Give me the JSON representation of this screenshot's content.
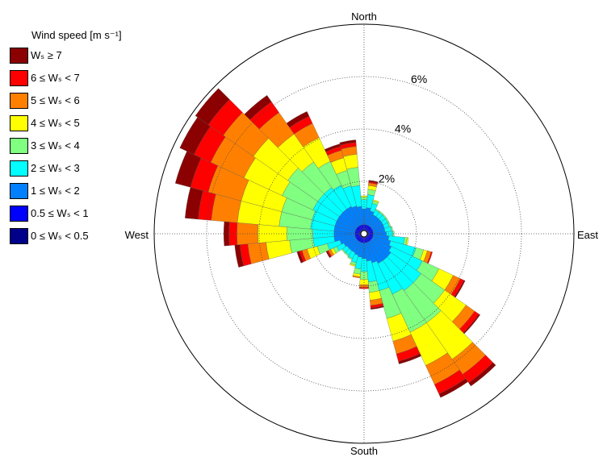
{
  "chart_data": {
    "type": "wind-rose",
    "legend": {
      "title": "Wind speed [m s⁻¹]",
      "placement": "top-left",
      "items": [
        {
          "label": "Wₛ ≥ 7",
          "color": "#8b0000"
        },
        {
          "label": "6 ≤ Wₛ < 7",
          "color": "#ff0000"
        },
        {
          "label": "5 ≤ Wₛ < 6",
          "color": "#ff8000"
        },
        {
          "label": "4 ≤ Wₛ < 5",
          "color": "#ffff00"
        },
        {
          "label": "3 ≤ Wₛ < 4",
          "color": "#80ff80"
        },
        {
          "label": "2 ≤ Wₛ < 3",
          "color": "#00ffff"
        },
        {
          "label": "1 ≤ Wₛ < 2",
          "color": "#0080ff"
        },
        {
          "label": "0.5 ≤ Wₛ < 1",
          "color": "#0000ff"
        },
        {
          "label": "0 ≤ Wₛ < 0.5",
          "color": "#00008b"
        }
      ]
    },
    "directions": {
      "north": "North",
      "east": "East",
      "south": "South",
      "west": "West"
    },
    "radial_ticks": [
      {
        "value": 2,
        "label": "2%"
      },
      {
        "value": 4,
        "label": "4%"
      },
      {
        "value": 6,
        "label": "6%"
      }
    ],
    "r_max": 8,
    "grid": true,
    "sector_width_deg": 10,
    "series_order": [
      "0-0.5",
      "0.5-1",
      "1-2",
      "2-3",
      "3-4",
      "4-5",
      "5-6",
      "6-7",
      ">=7"
    ],
    "sectors": [
      {
        "dir": 0,
        "values": [
          0.15,
          0.2,
          0.6,
          0.35,
          0.1,
          0.05,
          0.0,
          0.0,
          0.0
        ]
      },
      {
        "dir": 10,
        "values": [
          0.15,
          0.2,
          0.65,
          0.5,
          0.2,
          0.15,
          0.1,
          0.05,
          0.05
        ]
      },
      {
        "dir": 20,
        "values": [
          0.15,
          0.2,
          0.55,
          0.3,
          0.1,
          0.05,
          0.0,
          0.0,
          0.0
        ]
      },
      {
        "dir": 30,
        "values": [
          0.15,
          0.2,
          0.45,
          0.2,
          0.05,
          0.0,
          0.0,
          0.0,
          0.0
        ]
      },
      {
        "dir": 40,
        "values": [
          0.15,
          0.2,
          0.45,
          0.2,
          0.05,
          0.0,
          0.0,
          0.0,
          0.0
        ]
      },
      {
        "dir": 50,
        "values": [
          0.15,
          0.2,
          0.45,
          0.2,
          0.05,
          0.0,
          0.0,
          0.0,
          0.0
        ]
      },
      {
        "dir": 60,
        "values": [
          0.15,
          0.2,
          0.45,
          0.2,
          0.05,
          0.0,
          0.0,
          0.0,
          0.0
        ]
      },
      {
        "dir": 70,
        "values": [
          0.15,
          0.2,
          0.45,
          0.2,
          0.05,
          0.0,
          0.0,
          0.0,
          0.0
        ]
      },
      {
        "dir": 80,
        "values": [
          0.15,
          0.2,
          0.45,
          0.25,
          0.05,
          0.0,
          0.0,
          0.0,
          0.0
        ]
      },
      {
        "dir": 90,
        "values": [
          0.15,
          0.2,
          0.5,
          0.25,
          0.05,
          0.0,
          0.0,
          0.0,
          0.0
        ]
      },
      {
        "dir": 100,
        "values": [
          0.15,
          0.2,
          0.6,
          0.6,
          0.1,
          0.05,
          0.0,
          0.0,
          0.0
        ]
      },
      {
        "dir": 110,
        "values": [
          0.15,
          0.2,
          0.7,
          1.0,
          0.3,
          0.15,
          0.15,
          0.05,
          0.0
        ]
      },
      {
        "dir": 120,
        "values": [
          0.15,
          0.2,
          0.8,
          1.3,
          0.7,
          0.6,
          0.3,
          0.15,
          0.05
        ]
      },
      {
        "dir": 130,
        "values": [
          0.15,
          0.2,
          0.9,
          1.4,
          1.1,
          1.0,
          0.4,
          0.2,
          0.05
        ]
      },
      {
        "dir": 140,
        "values": [
          0.15,
          0.2,
          0.9,
          1.4,
          1.5,
          1.7,
          0.7,
          0.4,
          0.15
        ]
      },
      {
        "dir": 150,
        "values": [
          0.15,
          0.2,
          0.9,
          1.3,
          1.6,
          1.4,
          0.8,
          0.4,
          0.15
        ]
      },
      {
        "dir": 160,
        "values": [
          0.15,
          0.2,
          0.8,
          1.1,
          1.1,
          0.9,
          0.5,
          0.3,
          0.1
        ]
      },
      {
        "dir": 170,
        "values": [
          0.15,
          0.2,
          0.7,
          0.8,
          0.4,
          0.3,
          0.2,
          0.1,
          0.05
        ]
      },
      {
        "dir": 180,
        "values": [
          0.15,
          0.2,
          0.6,
          0.5,
          0.3,
          0.2,
          0.1,
          0.05,
          0.0
        ]
      },
      {
        "dir": 190,
        "values": [
          0.15,
          0.2,
          0.55,
          0.45,
          0.2,
          0.1,
          0.05,
          0.0,
          0.0
        ]
      },
      {
        "dir": 200,
        "values": [
          0.15,
          0.2,
          0.5,
          0.3,
          0.1,
          0.05,
          0.0,
          0.0,
          0.0
        ]
      },
      {
        "dir": 210,
        "values": [
          0.15,
          0.2,
          0.45,
          0.25,
          0.05,
          0.0,
          0.0,
          0.0,
          0.0
        ]
      },
      {
        "dir": 220,
        "values": [
          0.15,
          0.2,
          0.45,
          0.2,
          0.05,
          0.0,
          0.0,
          0.0,
          0.0
        ]
      },
      {
        "dir": 230,
        "values": [
          0.15,
          0.2,
          0.45,
          0.2,
          0.05,
          0.0,
          0.0,
          0.0,
          0.0
        ]
      },
      {
        "dir": 240,
        "values": [
          0.15,
          0.2,
          0.5,
          0.3,
          0.15,
          0.1,
          0.1,
          0.05,
          0.05
        ]
      },
      {
        "dir": 250,
        "values": [
          0.15,
          0.2,
          0.6,
          0.5,
          0.4,
          0.4,
          0.2,
          0.1,
          0.1
        ]
      },
      {
        "dir": 260,
        "values": [
          0.15,
          0.2,
          0.8,
          0.8,
          0.9,
          0.9,
          0.7,
          0.3,
          0.2
        ]
      },
      {
        "dir": 270,
        "values": [
          0.15,
          0.2,
          0.8,
          0.8,
          1.0,
          1.1,
          0.8,
          0.3,
          0.2
        ]
      },
      {
        "dir": 280,
        "values": [
          0.15,
          0.2,
          0.8,
          0.9,
          1.2,
          1.6,
          1.0,
          0.5,
          0.5
        ]
      },
      {
        "dir": 290,
        "values": [
          0.15,
          0.2,
          0.8,
          0.9,
          1.2,
          1.6,
          1.3,
          0.7,
          0.6
        ]
      },
      {
        "dir": 300,
        "values": [
          0.15,
          0.2,
          0.8,
          1.0,
          1.3,
          1.6,
          1.4,
          0.7,
          0.6
        ]
      },
      {
        "dir": 310,
        "values": [
          0.15,
          0.2,
          0.8,
          1.0,
          1.4,
          1.6,
          1.4,
          0.7,
          0.6
        ]
      },
      {
        "dir": 320,
        "values": [
          0.15,
          0.2,
          0.8,
          1.0,
          1.2,
          1.3,
          1.0,
          0.5,
          0.3
        ]
      },
      {
        "dir": 330,
        "values": [
          0.15,
          0.2,
          0.8,
          0.9,
          1.0,
          1.0,
          0.6,
          0.3,
          0.2
        ]
      },
      {
        "dir": 340,
        "values": [
          0.15,
          0.2,
          0.75,
          0.8,
          0.6,
          0.5,
          0.3,
          0.15,
          0.1
        ]
      },
      {
        "dir": 350,
        "values": [
          0.15,
          0.2,
          0.7,
          0.8,
          0.7,
          0.5,
          0.3,
          0.15,
          0.1
        ]
      }
    ]
  }
}
